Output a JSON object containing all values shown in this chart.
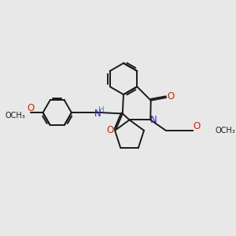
{
  "bg_color": "#e8e8e8",
  "bond_color": "#1a1a1a",
  "N_color": "#2222cc",
  "O_color": "#cc2200",
  "H_color": "#4a8fa0",
  "line_width": 1.4,
  "figsize": [
    3.0,
    3.0
  ],
  "dpi": 100,
  "xlim": [
    0,
    10
  ],
  "ylim": [
    0,
    10
  ]
}
